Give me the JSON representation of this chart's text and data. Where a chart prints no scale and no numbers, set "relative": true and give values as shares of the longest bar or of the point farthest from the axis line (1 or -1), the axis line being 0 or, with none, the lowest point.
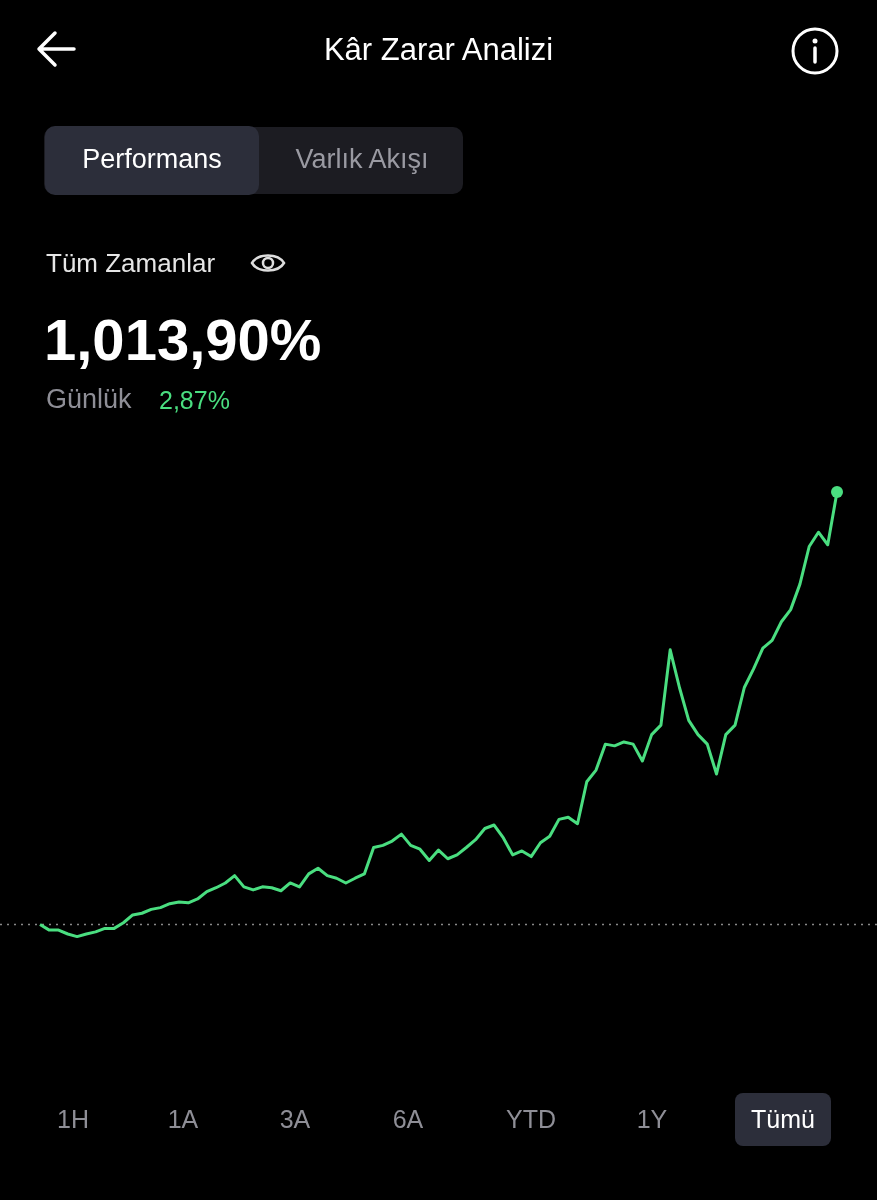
{
  "chart_data": {
    "type": "line",
    "title": "Kâr Zarar Analizi",
    "subtitle": "Tüm Zamanlar",
    "relative": true,
    "legend": false,
    "line_style": "solid",
    "categories": [
      null,
      null,
      null,
      null,
      null,
      null,
      null,
      null,
      null,
      null,
      null,
      null,
      null,
      null,
      null,
      null,
      null,
      null,
      null,
      null,
      null,
      null,
      null,
      null,
      null,
      null,
      null,
      null,
      null,
      null,
      null,
      null,
      null,
      null,
      null,
      null,
      null,
      null,
      null,
      null,
      null,
      null,
      null,
      null,
      null,
      null,
      null,
      null,
      null,
      null,
      null,
      null,
      null,
      null,
      null,
      null,
      null,
      null,
      null,
      null,
      null,
      null,
      null,
      null,
      null,
      null,
      null,
      null,
      null,
      null,
      null,
      null,
      null,
      null,
      null,
      null,
      null,
      null,
      null,
      null,
      null,
      null,
      null,
      null,
      null,
      null,
      null
    ],
    "series": [
      {
        "color": "#4ade80",
        "values": [
          0,
          -0.013,
          -0.013,
          -0.022,
          -0.028,
          -0.022,
          -0.017,
          -0.009,
          -0.009,
          0.004,
          0.022,
          0.026,
          0.035,
          0.039,
          0.048,
          0.052,
          0.05,
          0.059,
          0.076,
          0.085,
          0.096,
          0.113,
          0.087,
          0.08,
          0.087,
          0.085,
          0.078,
          0.096,
          0.087,
          0.117,
          0.13,
          0.113,
          0.107,
          0.096,
          0.107,
          0.117,
          0.178,
          0.183,
          0.193,
          0.209,
          0.183,
          0.174,
          0.148,
          0.172,
          0.152,
          0.161,
          0.178,
          0.196,
          0.222,
          0.23,
          0.2,
          0.161,
          0.17,
          0.157,
          0.189,
          0.204,
          0.243,
          0.248,
          0.233,
          0.33,
          0.357,
          0.417,
          0.413,
          0.422,
          0.417,
          0.378,
          0.439,
          0.461,
          0.635,
          0.548,
          0.472,
          0.439,
          0.417,
          0.348,
          0.439,
          0.461,
          0.548,
          0.591,
          0.639,
          0.657,
          0.7,
          0.728,
          0.787,
          0.874,
          0.907,
          0.878,
          1
        ]
      }
    ],
    "ref_lines": [
      {
        "axis": "y",
        "value": 0,
        "line_style": "dotted",
        "color": "#888888"
      }
    ],
    "annotations": [
      "Performans",
      "Varlık Akışı",
      "1,013,90%",
      "Günlük",
      "2,87%",
      "1H",
      "1A",
      "3A",
      "6A",
      "YTD",
      "1Y",
      "Tümü"
    ]
  }
}
